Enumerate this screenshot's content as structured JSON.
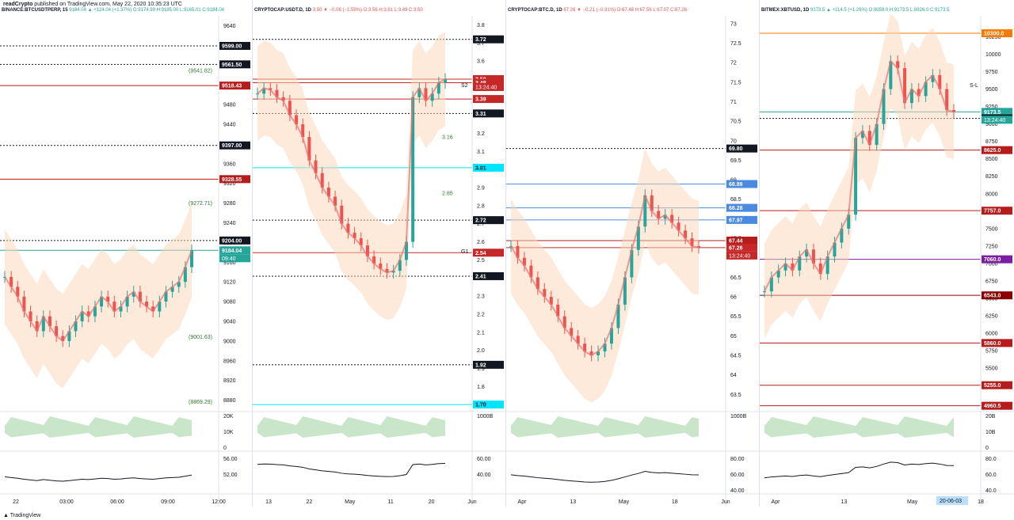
{
  "header": {
    "author": "readCrypto",
    "published": "published on TradingView.com, May 22, 2020 10:35:23 UTC"
  },
  "footer": {
    "brand": "TradingView"
  },
  "chart_data": [
    {
      "type": "line",
      "symbol": "BINANCE:BTCUSDTPERP, 15",
      "ohlc": "9184.04 ▲ +124.04 (+1.37%) O:9174.99 H:9185.00 L:9165.01 C:9184.04",
      "x_ticks": [
        "22",
        "03:00",
        "06:00",
        "09:00",
        "12:00"
      ],
      "y_ticks": [
        9640,
        9600,
        9560,
        9520,
        9480,
        9440,
        9400,
        9360,
        9320,
        9280,
        9240,
        9200,
        9160,
        9120,
        9080,
        9040,
        9000,
        8960,
        8920,
        8880
      ],
      "ylim": [
        8860,
        9660
      ],
      "price_labels": [
        {
          "value": 9599.0,
          "text": "9599.00",
          "color": "#131722",
          "fg": "#ffffff"
        },
        {
          "value": 9561.5,
          "text": "9561.50",
          "color": "#131722",
          "fg": "#ffffff"
        },
        {
          "value": 9518.43,
          "text": "9518.43",
          "color": "#b71c1c",
          "fg": "#ffffff"
        },
        {
          "value": 9397.0,
          "text": "9397.00",
          "color": "#131722",
          "fg": "#ffffff"
        },
        {
          "value": 9328.55,
          "text": "9328.55",
          "color": "#b71c1c",
          "fg": "#ffffff"
        },
        {
          "value": 9204.0,
          "text": "9204.00",
          "color": "#131722",
          "fg": "#ffffff"
        },
        {
          "value": 9184.04,
          "text": "9184.04",
          "color": "#26a69a",
          "fg": "#ffffff"
        }
      ],
      "countdown": "09:40",
      "line_notes": [
        {
          "value": 9541.82,
          "text": "(9541.82)"
        },
        {
          "value": 9272.71,
          "text": "(9272.71)"
        },
        {
          "value": 9001.63,
          "text": "(9001.63)"
        },
        {
          "value": 8869.29,
          "text": "(8869.29)"
        }
      ],
      "volume_ticks": [
        "20K",
        "10K",
        "0"
      ],
      "osc_ticks": [
        "56.00",
        "52.00"
      ],
      "close": [
        9130,
        9110,
        9090,
        9060,
        9040,
        9020,
        9050,
        9030,
        9010,
        9000,
        9020,
        9040,
        9060,
        9050,
        9070,
        9090,
        9080,
        9060,
        9070,
        9090,
        9100,
        9080,
        9070,
        9060,
        9080,
        9100,
        9110,
        9120,
        9150,
        9184
      ]
    },
    {
      "type": "line",
      "symbol": "CRYPTOCAP:USDT.D, 1D",
      "ohlc": "3.50 ▼ −0.06 (−1.59%) O:3.56 H:3.61 L:3.49 C:3.50",
      "x_ticks": [
        "13",
        "22",
        "May",
        "11",
        "20",
        "Jun"
      ],
      "y_ticks": [
        3.8,
        3.7,
        3.6,
        3.5,
        3.4,
        3.3,
        3.2,
        3.1,
        3.0,
        2.9,
        2.8,
        2.7,
        2.6,
        2.5,
        2.4,
        2.3,
        2.2,
        2.1,
        2.0,
        1.9,
        1.8,
        1.7
      ],
      "ylim": [
        1.67,
        3.85
      ],
      "price_labels": [
        {
          "value": 3.72,
          "text": "3.72",
          "color": "#131722",
          "fg": "#ffffff"
        },
        {
          "value": 3.5,
          "text": "3.50",
          "color": "#c62828",
          "fg": "#ffffff"
        },
        {
          "value": 3.48,
          "text": "3.48",
          "color": "#c62828",
          "fg": "#ffffff"
        },
        {
          "value": 3.39,
          "text": "3.39",
          "color": "#c62828",
          "fg": "#ffffff"
        },
        {
          "value": 3.31,
          "text": "3.31",
          "color": "#131722",
          "fg": "#ffffff"
        },
        {
          "value": 3.01,
          "text": "3.01",
          "color": "#00e5ff",
          "fg": "#131722"
        },
        {
          "value": 2.72,
          "text": "2.72",
          "color": "#131722",
          "fg": "#ffffff"
        },
        {
          "value": 2.54,
          "text": "2.54",
          "color": "#c62828",
          "fg": "#ffffff"
        },
        {
          "value": 2.41,
          "text": "2.41",
          "color": "#131722",
          "fg": "#ffffff"
        },
        {
          "value": 1.92,
          "text": "1.92",
          "color": "#131722",
          "fg": "#ffffff"
        },
        {
          "value": 1.7,
          "text": "1.70",
          "color": "#00e5ff",
          "fg": "#131722"
        }
      ],
      "countdown": "13:24:40",
      "line_notes": [
        {
          "value": 3.16,
          "text": "3.16"
        },
        {
          "value": 2.85,
          "text": "2.85"
        }
      ],
      "markers": [
        "S2",
        "G1"
      ],
      "volume_ticks": [
        "1000B"
      ],
      "osc_ticks": [
        "60.00",
        "40.00"
      ],
      "close": [
        3.42,
        3.45,
        3.44,
        3.4,
        3.38,
        3.3,
        3.25,
        3.18,
        3.05,
        2.98,
        2.9,
        2.85,
        2.8,
        2.7,
        2.65,
        2.62,
        2.58,
        2.52,
        2.48,
        2.45,
        2.43,
        2.44,
        2.5,
        2.6,
        3.4,
        3.45,
        3.38,
        3.42,
        3.48,
        3.5
      ]
    },
    {
      "type": "line",
      "symbol": "CRYPTOCAP:BTC.D, 1D",
      "ohlc": "67.26 ▼ −0.21 (−0.31%) O:67.48 H:67.56 L:67.07 C:67.26",
      "x_ticks": [
        "Apr",
        "13",
        "May",
        "18",
        "Jun"
      ],
      "y_ticks": [
        73.0,
        72.5,
        72.0,
        71.5,
        71.0,
        70.5,
        70.0,
        69.5,
        69.0,
        68.5,
        68.0,
        67.5,
        67.0,
        66.5,
        66.0,
        65.5,
        65.0,
        64.5,
        64.0,
        63.5
      ],
      "ylim": [
        63.1,
        73.2
      ],
      "price_labels": [
        {
          "value": 69.8,
          "text": "69.80",
          "color": "#131722",
          "fg": "#ffffff"
        },
        {
          "value": 68.89,
          "text": "68.89",
          "color": "#4a8ae0",
          "fg": "#ffffff"
        },
        {
          "value": 68.28,
          "text": "68.28",
          "color": "#4a8ae0",
          "fg": "#ffffff"
        },
        {
          "value": 67.97,
          "text": "67.97",
          "color": "#4a8ae0",
          "fg": "#ffffff"
        },
        {
          "value": 67.44,
          "text": "67.44",
          "color": "#b71c1c",
          "fg": "#ffffff"
        },
        {
          "value": 67.26,
          "text": "67.26",
          "color": "#c62828",
          "fg": "#ffffff"
        }
      ],
      "countdown": "13:24:40",
      "volume_ticks": [
        "1000B"
      ],
      "osc_ticks": [
        "80.00",
        "60.00",
        "40.00"
      ],
      "close": [
        67.3,
        67.0,
        66.8,
        66.5,
        66.2,
        66.0,
        65.8,
        65.5,
        65.2,
        65.0,
        64.8,
        64.6,
        64.5,
        64.6,
        64.8,
        65.2,
        65.8,
        66.5,
        67.2,
        67.8,
        68.6,
        68.2,
        68.0,
        68.1,
        67.9,
        67.7,
        67.5,
        67.3,
        67.26
      ]
    },
    {
      "type": "line",
      "symbol": "BITMEX:XBTUSD, 1D",
      "ohlc": "9173.5 ▲ +114.5 (+1.26%) O:9059.0 H:9173.5 L:8926.0 C:9173.5",
      "x_ticks": [
        "Apr",
        "13",
        "May",
        "18"
      ],
      "x_flag": "20-06-03",
      "y_ticks": [
        10250,
        10000,
        9750,
        9500,
        9250,
        9000,
        8750,
        8500,
        8250,
        8000,
        7750,
        7500,
        7250,
        7000,
        6750,
        6500,
        6250,
        6000,
        5750,
        5500,
        5250
      ],
      "ylim": [
        4900,
        10550
      ],
      "price_labels": [
        {
          "value": 10300.0,
          "text": "10300.0",
          "color": "#f57c00",
          "fg": "#ffffff"
        },
        {
          "value": 9173.5,
          "text": "9173.5",
          "color": "#26a69a",
          "fg": "#ffffff"
        },
        {
          "value": 9080.0,
          "text": "9080.0",
          "color": "#131722",
          "fg": "#ffffff"
        },
        {
          "value": 8625.0,
          "text": "8625.0",
          "color": "#b71c1c",
          "fg": "#ffffff"
        },
        {
          "value": 7757.0,
          "text": "7757.0",
          "color": "#b71c1c",
          "fg": "#ffffff"
        },
        {
          "value": 7060.0,
          "text": "7060.0",
          "color": "#7b1fa2",
          "fg": "#ffffff"
        },
        {
          "value": 6543.0,
          "text": "6543.0",
          "color": "#8b0000",
          "fg": "#ffffff"
        },
        {
          "value": 5860.0,
          "text": "5860.0",
          "color": "#b71c1c",
          "fg": "#ffffff"
        },
        {
          "value": 5255.0,
          "text": "5255.0",
          "color": "#b71c1c",
          "fg": "#ffffff"
        },
        {
          "value": 4960.5,
          "text": "4960.5",
          "color": "#b71c1c",
          "fg": "#ffffff"
        }
      ],
      "countdown": "13:24:40",
      "markers": [
        "S-L"
      ],
      "volume_ticks": [
        "20B",
        "10B",
        "0"
      ],
      "osc_ticks": [
        "80.0",
        "60.0",
        "40.0"
      ],
      "close": [
        6600,
        6800,
        6900,
        7000,
        6900,
        7100,
        7200,
        7000,
        6850,
        7100,
        7300,
        7500,
        7700,
        8800,
        8900,
        8700,
        9000,
        9500,
        9900,
        9800,
        9300,
        9500,
        9400,
        9600,
        9700,
        9500,
        9200,
        9173
      ]
    }
  ]
}
